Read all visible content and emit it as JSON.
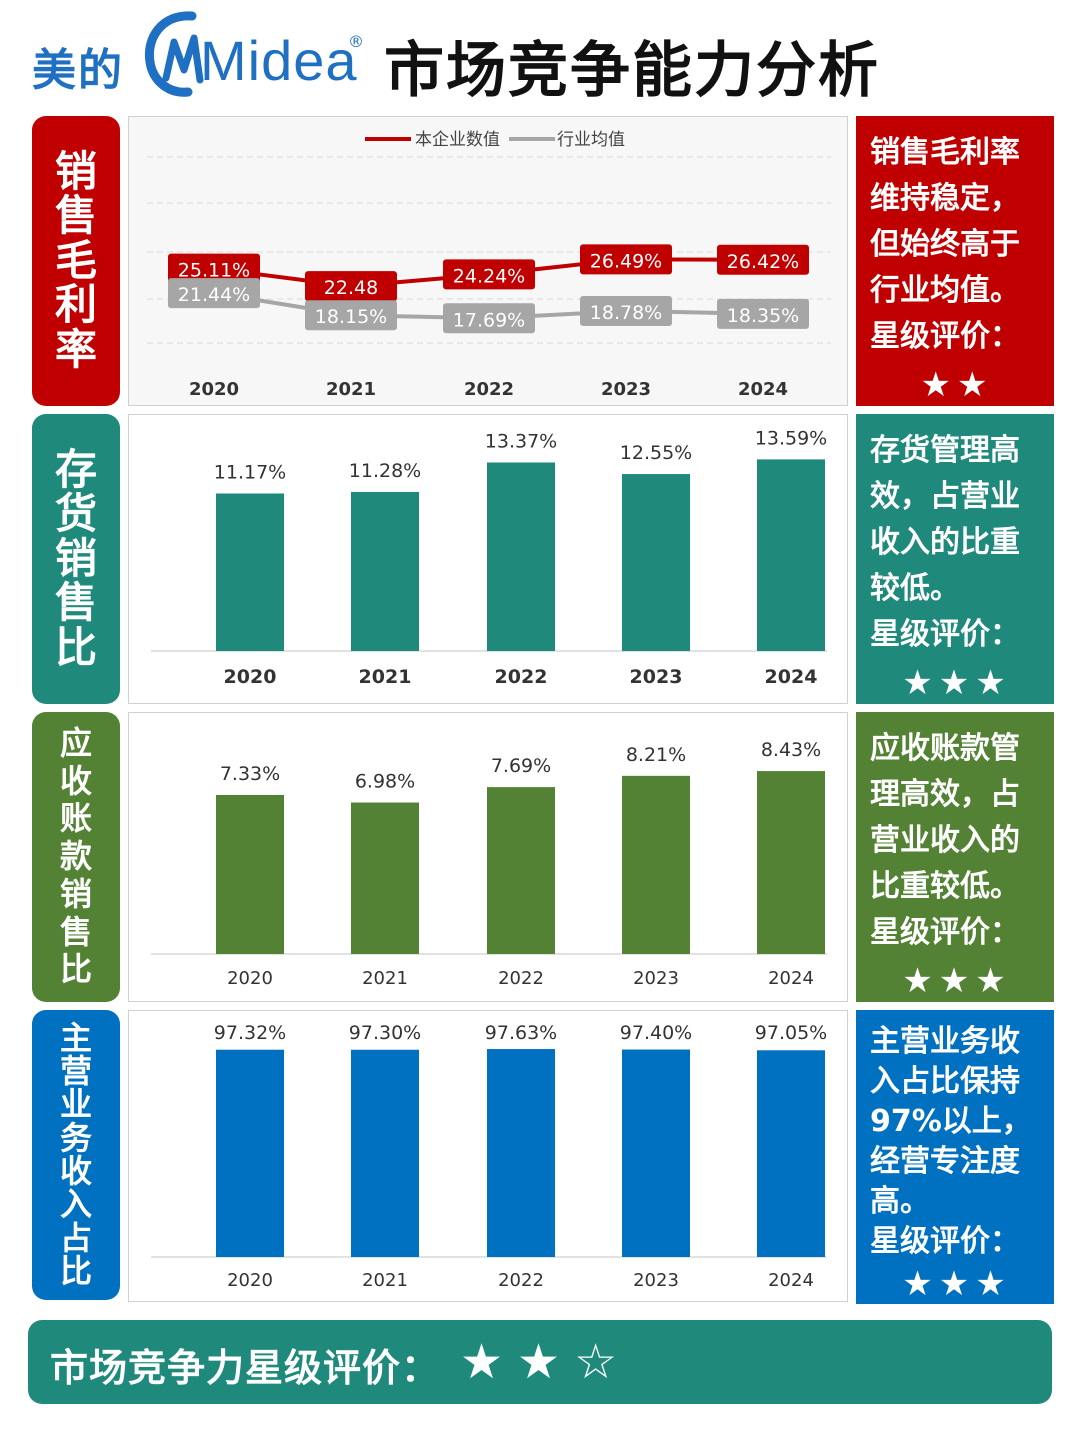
{
  "header": {
    "brand_cn": "美的",
    "brand_en": "Midea",
    "reg": "®",
    "title": "市场竞争能力分析"
  },
  "colors": {
    "red": "#c00000",
    "gray": "#a6a6a6",
    "teal": "#1f8a7c",
    "green": "#548235",
    "blue": "#0070c0"
  },
  "sections": [
    {
      "label": "销售毛利率",
      "comment": "销售毛利率维持稳定，但始终高于行业均值。",
      "rating_label": "星级评价：",
      "stars": "★★"
    },
    {
      "label": "存货销售比",
      "comment": "存货管理高效，占营业收入的比重较低。",
      "rating_label": "星级评价：",
      "stars": "★★★"
    },
    {
      "label": "应收账款销售比",
      "comment": "应收账款管理高效，占营业收入的比重较低。",
      "rating_label": "星级评价：",
      "stars": "★★★"
    },
    {
      "label": "主营业务收入占比",
      "comment": "主营业务收入占比保持97%以上，经营专注度高。",
      "rating_label": "星级评价：",
      "stars": "★★★"
    }
  ],
  "footer": {
    "label": "市场竞争力星级评价：",
    "stars": "★★",
    "half_star": "☆"
  },
  "chart_data": [
    {
      "type": "line",
      "categories": [
        "2020",
        "2021",
        "2022",
        "2023",
        "2024"
      ],
      "series": [
        {
          "name": "本企业数值",
          "values": [
            25.11,
            22.48,
            24.24,
            26.49,
            26.42
          ],
          "labels": [
            "25.11%",
            "22.48",
            "24.24%",
            "26.49%",
            "26.42%"
          ]
        },
        {
          "name": "行业均值",
          "values": [
            21.44,
            18.15,
            17.69,
            18.78,
            18.35
          ],
          "labels": [
            "21.44%",
            "18.15%",
            "17.69%",
            "18.78%",
            "18.35%"
          ]
        }
      ],
      "legend": "top-center",
      "grid": true
    },
    {
      "type": "bar",
      "categories": [
        "2020",
        "2021",
        "2022",
        "2023",
        "2024"
      ],
      "values": [
        11.17,
        11.28,
        13.37,
        12.55,
        13.59
      ],
      "labels": [
        "11.17%",
        "11.28%",
        "13.37%",
        "12.55%",
        "13.59%"
      ]
    },
    {
      "type": "bar",
      "categories": [
        "2020",
        "2021",
        "2022",
        "2023",
        "2024"
      ],
      "values": [
        7.33,
        6.98,
        7.69,
        8.21,
        8.43
      ],
      "labels": [
        "7.33%",
        "6.98%",
        "7.69%",
        "8.21%",
        "8.43%"
      ]
    },
    {
      "type": "bar",
      "categories": [
        "2020",
        "2021",
        "2022",
        "2023",
        "2024"
      ],
      "values": [
        97.32,
        97.3,
        97.63,
        97.4,
        97.05
      ],
      "labels": [
        "97.32%",
        "97.30%",
        "97.63%",
        "97.40%",
        "97.05%"
      ]
    }
  ]
}
